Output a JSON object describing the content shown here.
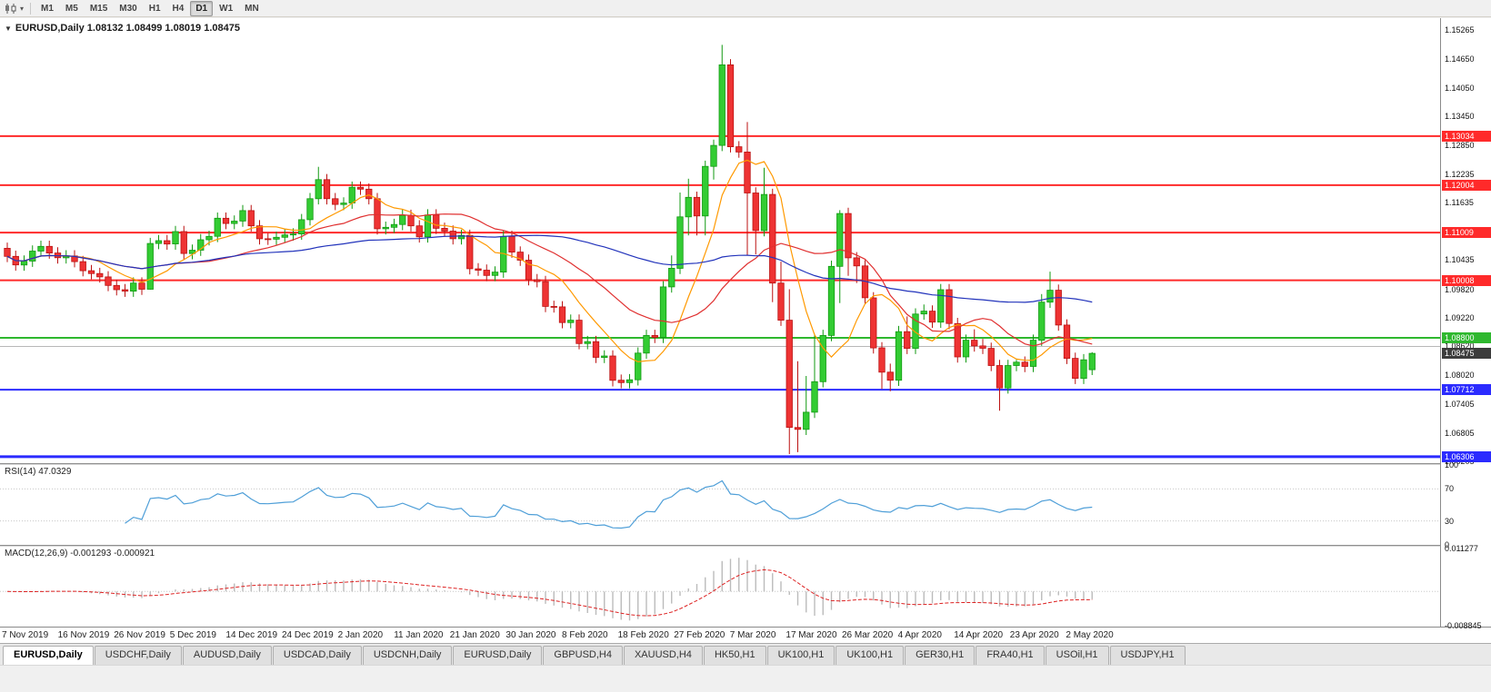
{
  "toolbar": {
    "timeframes": [
      "M1",
      "M5",
      "M15",
      "M30",
      "H1",
      "H4",
      "D1",
      "W1",
      "MN"
    ],
    "active_timeframe": "D1"
  },
  "tabs": {
    "active_index": 0,
    "items": [
      "EURUSD,Daily",
      "USDCHF,Daily",
      "AUDUSD,Daily",
      "USDCAD,Daily",
      "USDCNH,Daily",
      "EURUSD,Daily",
      "GBPUSD,H4",
      "XAUUSD,H4",
      "HK50,H1",
      "UK100,H1",
      "UK100,H1",
      "GER30,H1",
      "FRA40,H1",
      "USOil,H1",
      "USDJPY,H1"
    ]
  },
  "chart_data": {
    "type": "candlestick",
    "symbol": "EURUSD",
    "timeframe": "Daily",
    "info_line": "EURUSD,Daily  1.08132 1.08499 1.08019 1.08475",
    "colors": {
      "up": "#33cc33",
      "up_border": "#119911",
      "down": "#ee3333",
      "down_border": "#bb1111"
    },
    "y_axis": {
      "top": 1.1551,
      "bottom": 1.0617,
      "ticks": [
        "1.15265",
        "1.14650",
        "1.14050",
        "1.13450",
        "1.12850",
        "1.12235",
        "1.11635",
        "1.10435",
        "1.09820",
        "1.09220",
        "1.08620",
        "1.08020",
        "1.07405",
        "1.06805",
        "1.06205"
      ]
    },
    "hlines": [
      {
        "price": 1.13034,
        "label": "1.13034",
        "color": "#ff2a2a",
        "width": 2,
        "badge": true
      },
      {
        "price": 1.12004,
        "label": "1.12004",
        "color": "#ff2a2a",
        "width": 2,
        "badge": true
      },
      {
        "price": 1.11009,
        "label": "1.11009",
        "color": "#ff2a2a",
        "width": 2,
        "badge": true
      },
      {
        "price": 1.10008,
        "label": "1.10008",
        "color": "#ff2a2a",
        "width": 2,
        "badge": true
      },
      {
        "price": 1.088,
        "label": "1.08800",
        "color": "#2eb82e",
        "width": 2,
        "badge": true
      },
      {
        "price": 1.0862,
        "label": "",
        "color": "#b8b8b8",
        "width": 1,
        "badge": false
      },
      {
        "price": 1.07712,
        "label": "1.07712",
        "color": "#2b2bff",
        "width": 2,
        "badge": true
      },
      {
        "price": 1.06306,
        "label": "1.06306",
        "color": "#2b2bff",
        "width": 3,
        "badge": true
      }
    ],
    "current_price": {
      "price": 1.08475,
      "label": "1.08475",
      "bg": "#3c3c3c"
    },
    "overlays": {
      "moving_averages": [
        {
          "period": 8,
          "color": "#ff9900"
        },
        {
          "period": 20,
          "color": "#e03030"
        },
        {
          "period": 50,
          "color": "#2233bb"
        }
      ]
    },
    "indicators": {
      "rsi": {
        "label": "RSI(14) 47.0329",
        "period": 14,
        "color": "#4f9fd8",
        "levels": [
          70,
          30
        ],
        "axis": [
          {
            "label": "100",
            "value": 100
          },
          {
            "label": "70",
            "value": 70
          },
          {
            "label": "30",
            "value": 30
          },
          {
            "label": "0",
            "value": 0
          }
        ]
      },
      "macd": {
        "label": "MACD(12,26,9) -0.001293 -0.000921",
        "fast": 12,
        "slow": 26,
        "signal_period": 9,
        "hist_color": "#bbbbbb",
        "signal_color": "#dd2222",
        "scale_top": 0.0117,
        "scale_bottom": -0.0092,
        "axis": [
          {
            "label": "0.011277",
            "value": 0.011277
          },
          {
            "label": "-0.008845",
            "value": -0.008845
          }
        ]
      }
    },
    "x_labels": [
      "7 Nov 2019",
      "16 Nov 2019",
      "26 Nov 2019",
      "5 Dec 2019",
      "14 Dec 2019",
      "24 Dec 2019",
      "2 Jan 2020",
      "11 Jan 2020",
      "21 Jan 2020",
      "30 Jan 2020",
      "8 Feb 2020",
      "18 Feb 2020",
      "27 Feb 2020",
      "7 Mar 2020",
      "17 Mar 2020",
      "26 Mar 2020",
      "4 Apr 2020",
      "14 Apr 2020",
      "23 Apr 2020",
      "2 May 2020"
    ],
    "ohlc": [
      [
        1.1068,
        1.108,
        1.1039,
        1.1051
      ],
      [
        1.1051,
        1.1063,
        1.1021,
        1.1033
      ],
      [
        1.1033,
        1.1053,
        1.1021,
        1.1041
      ],
      [
        1.1041,
        1.1074,
        1.1029,
        1.1062
      ],
      [
        1.1062,
        1.1084,
        1.105,
        1.1072
      ],
      [
        1.1072,
        1.1084,
        1.1046,
        1.1058
      ],
      [
        1.1058,
        1.107,
        1.1036,
        1.1048
      ],
      [
        1.1048,
        1.1064,
        1.1036,
        1.1052
      ],
      [
        1.1052,
        1.1064,
        1.1028,
        1.104
      ],
      [
        1.104,
        1.1052,
        1.1009,
        1.1021
      ],
      [
        1.1021,
        1.1033,
        1.1003,
        1.1015
      ],
      [
        1.1015,
        1.1027,
        1.0996,
        1.1008
      ],
      [
        1.1008,
        1.102,
        1.0978,
        1.099
      ],
      [
        1.099,
        1.1002,
        1.0969,
        1.0981
      ],
      [
        1.0981,
        1.0993,
        1.0966,
        1.0978
      ],
      [
        1.0978,
        1.1007,
        1.0966,
        1.0995
      ],
      [
        1.0995,
        1.1007,
        1.097,
        1.0982
      ],
      [
        1.0982,
        1.109,
        1.0981,
        1.1078
      ],
      [
        1.1078,
        1.1096,
        1.1066,
        1.1084
      ],
      [
        1.1084,
        1.1096,
        1.1065,
        1.1077
      ],
      [
        1.1077,
        1.1115,
        1.1065,
        1.1103
      ],
      [
        1.1103,
        1.1115,
        1.1045,
        1.1057
      ],
      [
        1.1057,
        1.1076,
        1.1045,
        1.1064
      ],
      [
        1.1064,
        1.1098,
        1.1052,
        1.1086
      ],
      [
        1.1086,
        1.1105,
        1.1074,
        1.1093
      ],
      [
        1.1093,
        1.1143,
        1.1081,
        1.1131
      ],
      [
        1.1131,
        1.1143,
        1.1108,
        1.112
      ],
      [
        1.112,
        1.1137,
        1.1108,
        1.1125
      ],
      [
        1.1125,
        1.1159,
        1.1113,
        1.1147
      ],
      [
        1.1147,
        1.1159,
        1.1103,
        1.1115
      ],
      [
        1.1115,
        1.1127,
        1.1076,
        1.1088
      ],
      [
        1.1088,
        1.11,
        1.1075,
        1.1087
      ],
      [
        1.1087,
        1.1103,
        1.1075,
        1.1091
      ],
      [
        1.1091,
        1.1108,
        1.1079,
        1.1096
      ],
      [
        1.1096,
        1.111,
        1.1084,
        1.1098
      ],
      [
        1.1098,
        1.114,
        1.1086,
        1.1128
      ],
      [
        1.1128,
        1.1184,
        1.1116,
        1.1172
      ],
      [
        1.1172,
        1.1239,
        1.116,
        1.1212
      ],
      [
        1.1212,
        1.1224,
        1.116,
        1.1172
      ],
      [
        1.1172,
        1.1184,
        1.1148,
        1.116
      ],
      [
        1.116,
        1.1175,
        1.1148,
        1.1163
      ],
      [
        1.1163,
        1.1208,
        1.1151,
        1.1196
      ],
      [
        1.1196,
        1.1208,
        1.118,
        1.1192
      ],
      [
        1.1192,
        1.1204,
        1.116,
        1.1172
      ],
      [
        1.1172,
        1.1184,
        1.1097,
        1.1109
      ],
      [
        1.1109,
        1.1124,
        1.1097,
        1.1112
      ],
      [
        1.1112,
        1.113,
        1.11,
        1.1118
      ],
      [
        1.1118,
        1.1149,
        1.1106,
        1.1137
      ],
      [
        1.1137,
        1.1149,
        1.1103,
        1.1115
      ],
      [
        1.1115,
        1.1127,
        1.108,
        1.1092
      ],
      [
        1.1092,
        1.115,
        1.108,
        1.1138
      ],
      [
        1.1138,
        1.115,
        1.1098,
        1.111
      ],
      [
        1.111,
        1.1122,
        1.1092,
        1.1104
      ],
      [
        1.1104,
        1.1116,
        1.1076,
        1.1088
      ],
      [
        1.1088,
        1.1107,
        1.1076,
        1.1095
      ],
      [
        1.1095,
        1.1107,
        1.1013,
        1.1025
      ],
      [
        1.1025,
        1.1037,
        1.101,
        1.1022
      ],
      [
        1.1022,
        1.1034,
        1.0999,
        1.1011
      ],
      [
        1.1011,
        1.103,
        1.0999,
        1.1018
      ],
      [
        1.1018,
        1.1105,
        1.1006,
        1.1093
      ],
      [
        1.1093,
        1.1105,
        1.1048,
        1.106
      ],
      [
        1.106,
        1.1072,
        1.1031,
        1.1043
      ],
      [
        1.1043,
        1.1055,
        1.099,
        1.1002
      ],
      [
        1.1002,
        1.1014,
        1.0986,
        1.0998
      ],
      [
        1.0998,
        1.101,
        1.0934,
        1.0946
      ],
      [
        1.0946,
        1.0958,
        1.0933,
        1.0945
      ],
      [
        1.0945,
        1.0957,
        1.09,
        1.0912
      ],
      [
        1.0912,
        1.0929,
        1.09,
        1.0917
      ],
      [
        1.0917,
        1.0929,
        1.0856,
        1.0868
      ],
      [
        1.0868,
        1.0884,
        1.0856,
        1.0872
      ],
      [
        1.0872,
        1.0884,
        1.0827,
        1.0839
      ],
      [
        1.0839,
        1.0854,
        1.0827,
        1.0842
      ],
      [
        1.0842,
        1.0854,
        1.0778,
        1.0791
      ],
      [
        1.0791,
        1.0803,
        1.0774,
        1.0786
      ],
      [
        1.0786,
        1.0804,
        1.0774,
        1.0792
      ],
      [
        1.0792,
        1.086,
        1.078,
        1.0848
      ],
      [
        1.0848,
        1.0897,
        1.0836,
        1.0885
      ],
      [
        1.0885,
        1.0897,
        1.0869,
        1.0881
      ],
      [
        1.0881,
        1.0999,
        1.0869,
        1.0987
      ],
      [
        1.0987,
        1.1053,
        1.0975,
        1.1026
      ],
      [
        1.1026,
        1.1185,
        1.1014,
        1.1134
      ],
      [
        1.1134,
        1.1214,
        1.1095,
        1.1175
      ],
      [
        1.1175,
        1.1187,
        1.1095,
        1.1136
      ],
      [
        1.1136,
        1.1252,
        1.1095,
        1.124
      ],
      [
        1.124,
        1.1296,
        1.1212,
        1.1284
      ],
      [
        1.1284,
        1.1495,
        1.1272,
        1.1453
      ],
      [
        1.1453,
        1.1465,
        1.1269,
        1.1281
      ],
      [
        1.1281,
        1.1293,
        1.1258,
        1.127
      ],
      [
        1.127,
        1.1333,
        1.1054,
        1.1184
      ],
      [
        1.1184,
        1.1196,
        1.1055,
        1.1105
      ],
      [
        1.1105,
        1.1237,
        1.1093,
        1.1181
      ],
      [
        1.1181,
        1.1193,
        1.0955,
        1.0995
      ],
      [
        1.0995,
        1.104,
        1.0905,
        1.0917
      ],
      [
        1.0917,
        1.0982,
        1.0636,
        1.0692
      ],
      [
        1.0692,
        1.0831,
        1.064,
        1.0688
      ],
      [
        1.0688,
        1.08,
        1.0676,
        1.0724
      ],
      [
        1.0724,
        1.0888,
        1.0712,
        1.0788
      ],
      [
        1.0788,
        1.0897,
        1.0776,
        1.0885
      ],
      [
        1.0885,
        1.1042,
        1.0873,
        1.103
      ],
      [
        1.103,
        1.1148,
        1.0953,
        1.1141
      ],
      [
        1.1141,
        1.1153,
        1.101,
        1.1048
      ],
      [
        1.1048,
        1.106,
        1.0995,
        1.1031
      ],
      [
        1.1031,
        1.1043,
        1.0952,
        1.0964
      ],
      [
        1.0964,
        1.0976,
        1.0847,
        1.0859
      ],
      [
        1.0859,
        1.0871,
        1.0773,
        1.0808
      ],
      [
        1.0808,
        1.0826,
        1.0768,
        1.0791
      ],
      [
        1.0791,
        1.0905,
        1.0779,
        1.0893
      ],
      [
        1.0893,
        1.0925,
        1.0846,
        1.0858
      ],
      [
        1.0858,
        1.0942,
        1.0846,
        1.093
      ],
      [
        1.093,
        1.095,
        1.0918,
        1.0936
      ],
      [
        1.0936,
        1.0948,
        1.0901,
        1.0913
      ],
      [
        1.0913,
        1.0993,
        1.0901,
        1.0981
      ],
      [
        1.0981,
        1.0993,
        1.0898,
        1.091
      ],
      [
        1.091,
        1.0922,
        1.0828,
        1.084
      ],
      [
        1.084,
        1.0887,
        1.0828,
        1.0875
      ],
      [
        1.0875,
        1.0898,
        1.0851,
        1.0863
      ],
      [
        1.0863,
        1.0878,
        1.0846,
        1.0858
      ],
      [
        1.0858,
        1.087,
        1.081,
        1.0822
      ],
      [
        1.0822,
        1.0834,
        1.0727,
        1.0775
      ],
      [
        1.0775,
        1.0834,
        1.0763,
        1.0822
      ],
      [
        1.0822,
        1.0834,
        1.081,
        1.0829
      ],
      [
        1.0829,
        1.0841,
        1.0808,
        1.082
      ],
      [
        1.082,
        1.0887,
        1.0808,
        1.0875
      ],
      [
        1.0875,
        1.0972,
        1.0863,
        1.0955
      ],
      [
        1.0955,
        1.1019,
        1.0943,
        1.098
      ],
      [
        1.098,
        1.0992,
        1.0895,
        1.0907
      ],
      [
        1.0907,
        1.0919,
        1.0825,
        1.0837
      ],
      [
        1.0837,
        1.0849,
        1.0783,
        1.0795
      ],
      [
        1.0795,
        1.0846,
        1.0783,
        1.0834
      ],
      [
        1.08132,
        1.08499,
        1.08019,
        1.08475
      ]
    ]
  }
}
